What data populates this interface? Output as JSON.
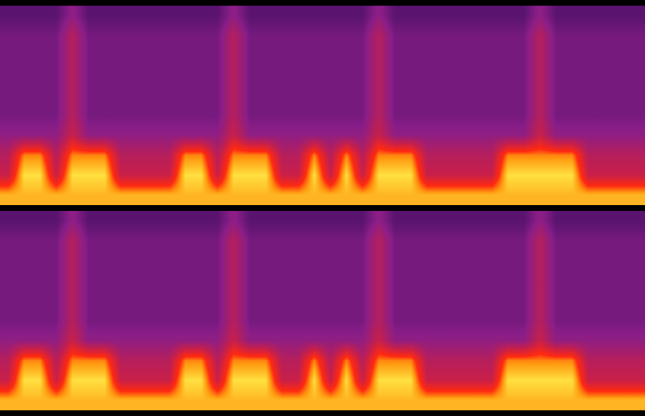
{
  "chart_data": [
    {
      "type": "heatmap",
      "tick_labels": false,
      "cells": [
        [
          0.3,
          0.3,
          0.3,
          0.3,
          0.4,
          0.3,
          0.3,
          0.3,
          0.3,
          0.3,
          0.3,
          0.3,
          0.3,
          0.3,
          0.4,
          0.3,
          0.3,
          0.3,
          0.3,
          0.3,
          0.3,
          0.3,
          0.3,
          0.4,
          0.3,
          0.3,
          0.3,
          0.3,
          0.3,
          0.3,
          0.3,
          0.3,
          0.3,
          0.4,
          0.3,
          0.3,
          0.3,
          0.3,
          0.3,
          0.3
        ],
        [
          0.35,
          0.35,
          0.35,
          0.35,
          0.5,
          0.35,
          0.35,
          0.35,
          0.35,
          0.35,
          0.35,
          0.35,
          0.35,
          0.35,
          0.5,
          0.35,
          0.35,
          0.35,
          0.35,
          0.35,
          0.35,
          0.35,
          0.35,
          0.5,
          0.35,
          0.35,
          0.35,
          0.35,
          0.35,
          0.35,
          0.35,
          0.35,
          0.35,
          0.5,
          0.35,
          0.35,
          0.35,
          0.35,
          0.35,
          0.35
        ],
        [
          0.35,
          0.35,
          0.35,
          0.35,
          0.5,
          0.35,
          0.35,
          0.35,
          0.35,
          0.35,
          0.35,
          0.35,
          0.35,
          0.35,
          0.5,
          0.35,
          0.35,
          0.35,
          0.35,
          0.35,
          0.35,
          0.35,
          0.35,
          0.5,
          0.35,
          0.35,
          0.35,
          0.35,
          0.35,
          0.35,
          0.35,
          0.35,
          0.35,
          0.5,
          0.35,
          0.35,
          0.35,
          0.35,
          0.35,
          0.35
        ],
        [
          0.35,
          0.35,
          0.35,
          0.35,
          0.5,
          0.35,
          0.35,
          0.35,
          0.35,
          0.35,
          0.35,
          0.35,
          0.35,
          0.35,
          0.5,
          0.35,
          0.35,
          0.35,
          0.35,
          0.35,
          0.35,
          0.35,
          0.35,
          0.5,
          0.35,
          0.35,
          0.35,
          0.35,
          0.35,
          0.35,
          0.35,
          0.35,
          0.35,
          0.5,
          0.35,
          0.35,
          0.35,
          0.35,
          0.35,
          0.35
        ],
        [
          0.35,
          0.35,
          0.35,
          0.35,
          0.5,
          0.35,
          0.35,
          0.35,
          0.35,
          0.35,
          0.35,
          0.35,
          0.35,
          0.35,
          0.5,
          0.35,
          0.35,
          0.35,
          0.35,
          0.35,
          0.35,
          0.35,
          0.35,
          0.5,
          0.35,
          0.35,
          0.35,
          0.35,
          0.35,
          0.35,
          0.35,
          0.35,
          0.35,
          0.5,
          0.35,
          0.35,
          0.35,
          0.35,
          0.35,
          0.35
        ],
        [
          0.35,
          0.35,
          0.35,
          0.35,
          0.5,
          0.35,
          0.35,
          0.35,
          0.35,
          0.35,
          0.35,
          0.35,
          0.35,
          0.35,
          0.5,
          0.35,
          0.35,
          0.35,
          0.35,
          0.35,
          0.35,
          0.35,
          0.35,
          0.5,
          0.35,
          0.35,
          0.35,
          0.35,
          0.35,
          0.35,
          0.35,
          0.35,
          0.35,
          0.5,
          0.35,
          0.35,
          0.35,
          0.35,
          0.35,
          0.35
        ],
        [
          0.4,
          0.4,
          0.4,
          0.4,
          0.55,
          0.4,
          0.4,
          0.4,
          0.4,
          0.4,
          0.4,
          0.4,
          0.4,
          0.4,
          0.55,
          0.4,
          0.4,
          0.4,
          0.4,
          0.4,
          0.4,
          0.4,
          0.4,
          0.55,
          0.4,
          0.4,
          0.4,
          0.4,
          0.4,
          0.4,
          0.4,
          0.4,
          0.4,
          0.55,
          0.4,
          0.4,
          0.4,
          0.4,
          0.4,
          0.4
        ],
        [
          0.5,
          0.75,
          0.75,
          0.5,
          0.75,
          0.75,
          0.75,
          0.5,
          0.5,
          0.5,
          0.5,
          0.75,
          0.75,
          0.5,
          0.75,
          0.75,
          0.75,
          0.5,
          0.5,
          0.75,
          0.5,
          0.75,
          0.5,
          0.75,
          0.75,
          0.75,
          0.5,
          0.5,
          0.5,
          0.5,
          0.5,
          0.75,
          0.75,
          0.75,
          0.75,
          0.75,
          0.5,
          0.5,
          0.5,
          0.5
        ],
        [
          0.55,
          0.85,
          0.85,
          0.55,
          0.85,
          0.85,
          0.85,
          0.55,
          0.55,
          0.55,
          0.55,
          0.85,
          0.85,
          0.55,
          0.85,
          0.85,
          0.85,
          0.55,
          0.55,
          0.85,
          0.55,
          0.85,
          0.55,
          0.85,
          0.85,
          0.85,
          0.55,
          0.55,
          0.55,
          0.55,
          0.55,
          0.85,
          0.85,
          0.85,
          0.85,
          0.85,
          0.55,
          0.55,
          0.55,
          0.55
        ],
        [
          0.8,
          0.8,
          0.8,
          0.8,
          0.8,
          0.8,
          0.8,
          0.8,
          0.8,
          0.8,
          0.8,
          0.8,
          0.8,
          0.8,
          0.8,
          0.8,
          0.8,
          0.8,
          0.8,
          0.8,
          0.8,
          0.8,
          0.8,
          0.8,
          0.8,
          0.8,
          0.8,
          0.8,
          0.8,
          0.8,
          0.8,
          0.8,
          0.8,
          0.8,
          0.8,
          0.8,
          0.8,
          0.8,
          0.8,
          0.8
        ]
      ]
    },
    {
      "type": "heatmap",
      "tick_labels": false,
      "cells": [
        [
          0.3,
          0.3,
          0.3,
          0.3,
          0.4,
          0.3,
          0.3,
          0.3,
          0.3,
          0.3,
          0.3,
          0.3,
          0.3,
          0.3,
          0.4,
          0.3,
          0.3,
          0.3,
          0.3,
          0.3,
          0.3,
          0.3,
          0.3,
          0.4,
          0.3,
          0.3,
          0.3,
          0.3,
          0.3,
          0.3,
          0.3,
          0.3,
          0.3,
          0.4,
          0.3,
          0.3,
          0.3,
          0.3,
          0.3,
          0.3
        ],
        [
          0.35,
          0.35,
          0.35,
          0.35,
          0.5,
          0.35,
          0.35,
          0.35,
          0.35,
          0.35,
          0.35,
          0.35,
          0.35,
          0.35,
          0.5,
          0.35,
          0.35,
          0.35,
          0.35,
          0.35,
          0.35,
          0.35,
          0.35,
          0.5,
          0.35,
          0.35,
          0.35,
          0.35,
          0.35,
          0.35,
          0.35,
          0.35,
          0.35,
          0.5,
          0.35,
          0.35,
          0.35,
          0.35,
          0.35,
          0.35
        ],
        [
          0.35,
          0.35,
          0.35,
          0.35,
          0.5,
          0.35,
          0.35,
          0.35,
          0.35,
          0.35,
          0.35,
          0.35,
          0.35,
          0.35,
          0.5,
          0.35,
          0.35,
          0.35,
          0.35,
          0.35,
          0.35,
          0.35,
          0.35,
          0.5,
          0.35,
          0.35,
          0.35,
          0.35,
          0.35,
          0.35,
          0.35,
          0.35,
          0.35,
          0.5,
          0.35,
          0.35,
          0.35,
          0.35,
          0.35,
          0.35
        ],
        [
          0.35,
          0.35,
          0.35,
          0.35,
          0.5,
          0.35,
          0.35,
          0.35,
          0.35,
          0.35,
          0.35,
          0.35,
          0.35,
          0.35,
          0.5,
          0.35,
          0.35,
          0.35,
          0.35,
          0.35,
          0.35,
          0.35,
          0.35,
          0.5,
          0.35,
          0.35,
          0.35,
          0.35,
          0.35,
          0.35,
          0.35,
          0.35,
          0.35,
          0.5,
          0.35,
          0.35,
          0.35,
          0.35,
          0.35,
          0.35
        ],
        [
          0.35,
          0.35,
          0.35,
          0.35,
          0.5,
          0.35,
          0.35,
          0.35,
          0.35,
          0.35,
          0.35,
          0.35,
          0.35,
          0.35,
          0.5,
          0.35,
          0.35,
          0.35,
          0.35,
          0.35,
          0.35,
          0.35,
          0.35,
          0.5,
          0.35,
          0.35,
          0.35,
          0.35,
          0.35,
          0.35,
          0.35,
          0.35,
          0.35,
          0.5,
          0.35,
          0.35,
          0.35,
          0.35,
          0.35,
          0.35
        ],
        [
          0.35,
          0.35,
          0.35,
          0.35,
          0.5,
          0.35,
          0.35,
          0.35,
          0.35,
          0.35,
          0.35,
          0.35,
          0.35,
          0.35,
          0.5,
          0.35,
          0.35,
          0.35,
          0.35,
          0.35,
          0.35,
          0.35,
          0.35,
          0.5,
          0.35,
          0.35,
          0.35,
          0.35,
          0.35,
          0.35,
          0.35,
          0.35,
          0.35,
          0.5,
          0.35,
          0.35,
          0.35,
          0.35,
          0.35,
          0.35
        ],
        [
          0.4,
          0.4,
          0.4,
          0.4,
          0.55,
          0.4,
          0.4,
          0.4,
          0.4,
          0.4,
          0.4,
          0.4,
          0.4,
          0.4,
          0.55,
          0.4,
          0.4,
          0.4,
          0.4,
          0.4,
          0.4,
          0.4,
          0.4,
          0.55,
          0.4,
          0.4,
          0.4,
          0.4,
          0.4,
          0.4,
          0.4,
          0.4,
          0.4,
          0.55,
          0.4,
          0.4,
          0.4,
          0.4,
          0.4,
          0.4
        ],
        [
          0.5,
          0.75,
          0.75,
          0.5,
          0.75,
          0.75,
          0.75,
          0.5,
          0.5,
          0.5,
          0.5,
          0.75,
          0.75,
          0.5,
          0.75,
          0.75,
          0.75,
          0.5,
          0.5,
          0.75,
          0.5,
          0.75,
          0.5,
          0.75,
          0.75,
          0.75,
          0.5,
          0.5,
          0.5,
          0.5,
          0.5,
          0.75,
          0.75,
          0.75,
          0.75,
          0.75,
          0.5,
          0.5,
          0.5,
          0.5
        ],
        [
          0.55,
          0.85,
          0.85,
          0.55,
          0.85,
          0.85,
          0.85,
          0.55,
          0.55,
          0.55,
          0.55,
          0.85,
          0.85,
          0.55,
          0.85,
          0.85,
          0.85,
          0.55,
          0.55,
          0.85,
          0.55,
          0.85,
          0.55,
          0.85,
          0.85,
          0.85,
          0.55,
          0.55,
          0.55,
          0.55,
          0.55,
          0.85,
          0.85,
          0.85,
          0.85,
          0.85,
          0.55,
          0.55,
          0.55,
          0.55
        ],
        [
          0.8,
          0.8,
          0.8,
          0.8,
          0.8,
          0.8,
          0.8,
          0.8,
          0.8,
          0.8,
          0.8,
          0.8,
          0.8,
          0.8,
          0.8,
          0.8,
          0.8,
          0.8,
          0.8,
          0.8,
          0.8,
          0.8,
          0.8,
          0.8,
          0.8,
          0.8,
          0.8,
          0.8,
          0.8,
          0.8,
          0.8,
          0.8,
          0.8,
          0.8,
          0.8,
          0.8,
          0.8,
          0.8,
          0.8,
          0.8
        ]
      ]
    }
  ]
}
